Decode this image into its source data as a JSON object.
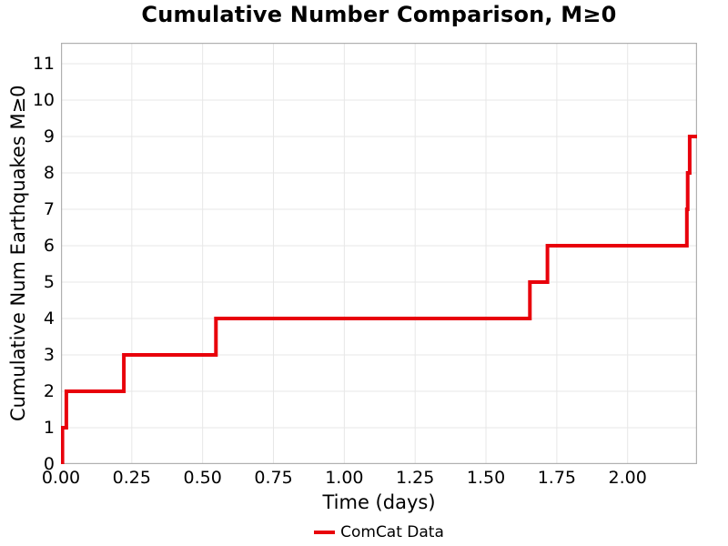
{
  "colors": {
    "line": "#e8000b",
    "grid": "#e7e7e7",
    "frame": "#b0b0b0",
    "text": "#000000",
    "background": "#ffffff"
  },
  "chart_data": {
    "type": "line",
    "subtype": "step-post-cumulative",
    "title": "Cumulative Number Comparison, M≥0",
    "xlabel": "Time (days)",
    "ylabel": "Cumulative Num Earthquakes M≥0",
    "xlim": [
      0,
      2.245
    ],
    "ylim": [
      0,
      11.575
    ],
    "grid": true,
    "xtick_values": [
      0,
      0.25,
      0.5,
      0.75,
      1.0,
      1.25,
      1.5,
      1.75,
      2.0
    ],
    "xtick_labels": [
      "0.00",
      "0.25",
      "0.50",
      "0.75",
      "1.00",
      "1.25",
      "1.50",
      "1.75",
      "2.00"
    ],
    "ytick_values": [
      0,
      1,
      2,
      3,
      4,
      5,
      6,
      7,
      8,
      9,
      10,
      11
    ],
    "ytick_labels": [
      "0",
      "1",
      "2",
      "3",
      "4",
      "5",
      "6",
      "7",
      "8",
      "9",
      "10",
      "11"
    ],
    "legend": {
      "position": "bottom-center",
      "entries": [
        {
          "label": "ComCat Data",
          "color": "#e8000b"
        }
      ]
    },
    "series": [
      {
        "name": "ComCat Data",
        "color": "#e8000b",
        "line_width": 4,
        "start": [
          0,
          0
        ],
        "events": [
          [
            0.005,
            1
          ],
          [
            0.019,
            2
          ],
          [
            0.222,
            3
          ],
          [
            0.547,
            4
          ],
          [
            1.655,
            5
          ],
          [
            1.717,
            6
          ],
          [
            2.209,
            7
          ],
          [
            2.212,
            8
          ],
          [
            2.219,
            9
          ]
        ],
        "end_x": 2.245
      }
    ]
  }
}
